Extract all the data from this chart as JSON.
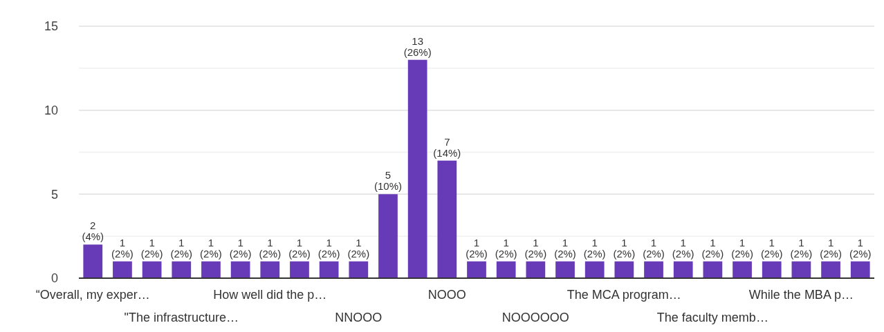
{
  "chart_data": {
    "type": "bar",
    "categories": [
      "“Overall, my exper…",
      null,
      null,
      "\"The infrastructure…",
      null,
      null,
      "How well did the p…",
      null,
      null,
      "NNOOO",
      null,
      null,
      "NOOO",
      null,
      null,
      "NOOOOOO",
      null,
      null,
      "The MCA program…",
      null,
      null,
      "The faculty memb…",
      null,
      null,
      "While the MBA p…",
      null,
      null
    ],
    "values": [
      2,
      1,
      1,
      1,
      1,
      1,
      1,
      1,
      1,
      1,
      5,
      13,
      7,
      1,
      1,
      1,
      1,
      1,
      1,
      1,
      1,
      1,
      1,
      1,
      1,
      1,
      1
    ],
    "value_labels": [
      "2 (4%)",
      "1 (2%)",
      "1 (2%)",
      "1 (2%)",
      "1 (2%)",
      "1 (2%)",
      "1 (2%)",
      "1 (2%)",
      "1 (2%)",
      "1 (2%)",
      "5 (10%)",
      "13 (26%)",
      "7 (14%)",
      "1 (2%)",
      "1 (2%)",
      "1 (2%)",
      "1 (2%)",
      "1 (2%)",
      "1 (2%)",
      "1 (2%)",
      "1 (2%)",
      "1 (2%)",
      "1 (2%)",
      "1 (2%)",
      "1 (2%)",
      "1 (2%)",
      "1 (2%)"
    ],
    "color": "#673ab7",
    "ylim": [
      0,
      15
    ],
    "yticks": [
      0,
      {
        "value": 2.5,
        "label": null
      },
      5,
      {
        "value": 7.5,
        "label": null
      },
      10,
      {
        "value": 12.5,
        "label": null
      },
      15
    ],
    "grid": true
  }
}
